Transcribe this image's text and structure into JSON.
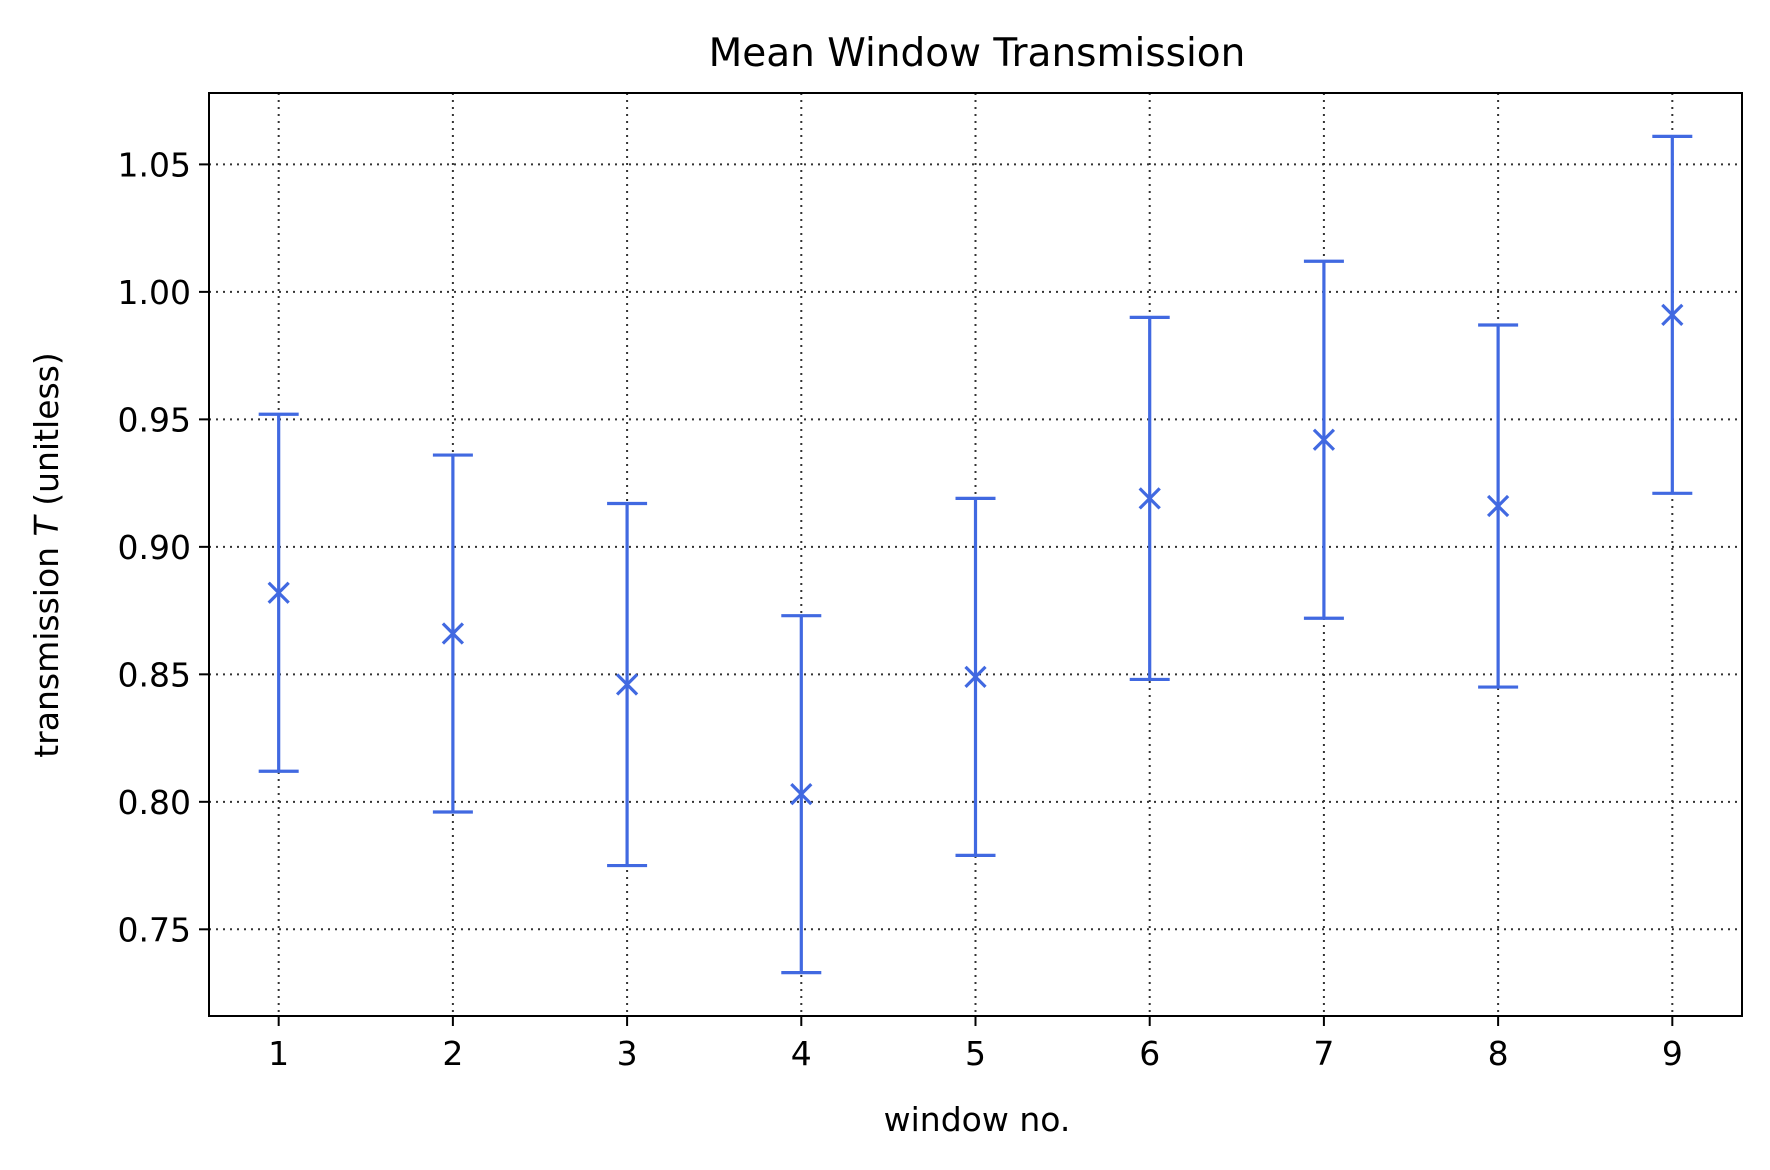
{
  "chart_data": {
    "type": "scatter",
    "title": "Mean Window Transmission",
    "xlabel": "window no.",
    "ylabel_prefix": "transmission ",
    "ylabel_symbol": "T",
    "ylabel_suffix": " (unitless)",
    "xlim": [
      0.6,
      9.4
    ],
    "ylim": [
      0.716,
      1.078
    ],
    "x_ticks": [
      1,
      2,
      3,
      4,
      5,
      6,
      7,
      8,
      9
    ],
    "y_ticks": [
      "0.75",
      "0.80",
      "0.85",
      "0.90",
      "0.95",
      "1.00",
      "1.05"
    ],
    "grid": true,
    "grid_style": "dotted",
    "marker": "x",
    "color": "#4169e1",
    "x": [
      1,
      2,
      3,
      4,
      5,
      6,
      7,
      8,
      9
    ],
    "y": [
      0.882,
      0.866,
      0.846,
      0.803,
      0.849,
      0.919,
      0.942,
      0.916,
      0.991
    ],
    "yerr": [
      0.07,
      0.07,
      0.071,
      0.07,
      0.07,
      0.071,
      0.07,
      0.071,
      0.07
    ]
  }
}
